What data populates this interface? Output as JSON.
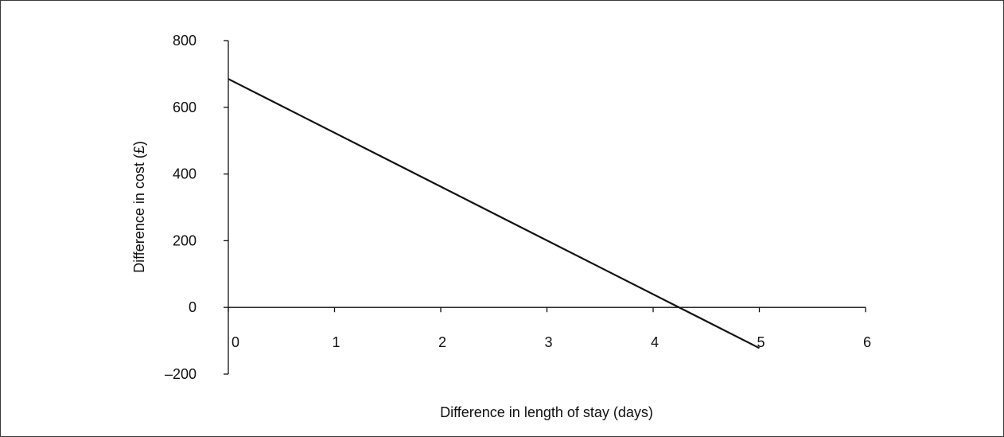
{
  "chart_data": {
    "type": "line",
    "title": "",
    "xlabel": "Difference in length of stay (days)",
    "ylabel": "Difference in cost (£)",
    "xlim": [
      0,
      6
    ],
    "ylim": [
      -200,
      800
    ],
    "x_ticks": [
      0,
      1,
      2,
      3,
      4,
      5,
      6
    ],
    "x_tick_labels": [
      "0",
      "1",
      "2",
      "3",
      "4",
      "5",
      "6"
    ],
    "y_ticks": [
      -200,
      0,
      200,
      400,
      600,
      800
    ],
    "y_tick_labels": [
      "–200",
      "0",
      "200",
      "400",
      "600",
      "800"
    ],
    "grid": false,
    "legend": "none",
    "series": [
      {
        "x": [
          0,
          5
        ],
        "y": [
          685,
          -122
        ],
        "color": "#111111"
      }
    ]
  }
}
